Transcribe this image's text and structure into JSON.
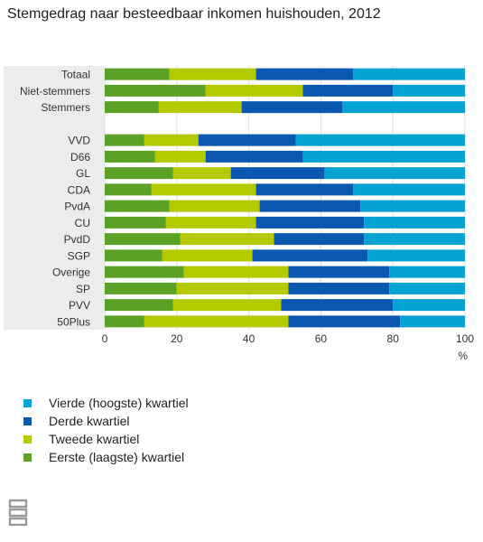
{
  "colors": {
    "q1": "#5aa125",
    "q2": "#b5c900",
    "q3": "#0b58b1",
    "q4": "#05a3d1",
    "label_band": "#ececec",
    "grid": "#e0e0e0",
    "logo": "#9b9b9b"
  },
  "chart_data": {
    "type": "bar",
    "orientation": "horizontal",
    "stacked": true,
    "title": "Stemgedrag naar besteedbaar inkomen huishouden, 2012",
    "xlabel": "%",
    "xlim": [
      0,
      100
    ],
    "xticks": [
      0,
      20,
      40,
      60,
      80,
      100
    ],
    "legend_position": "bottom-left",
    "categories": [
      "Totaal",
      "Niet-stemmers",
      "Stemmers",
      "",
      "VVD",
      "D66",
      "GL",
      "CDA",
      "PvdA",
      "CU",
      "PvdD",
      "SGP",
      "Overige",
      "SP",
      "PVV",
      "50Plus"
    ],
    "series": [
      {
        "name": "Eerste (laagste) kwartiel",
        "color_key": "q1",
        "values": [
          18,
          28,
          15,
          null,
          11,
          14,
          19,
          13,
          18,
          17,
          21,
          16,
          22,
          20,
          19,
          11
        ]
      },
      {
        "name": "Tweede kwartiel",
        "color_key": "q2",
        "values": [
          24,
          27,
          23,
          null,
          15,
          14,
          16,
          29,
          25,
          25,
          26,
          25,
          29,
          31,
          30,
          40
        ]
      },
      {
        "name": "Derde kwartiel",
        "color_key": "q3",
        "values": [
          27,
          25,
          28,
          null,
          27,
          27,
          26,
          27,
          28,
          30,
          25,
          32,
          28,
          28,
          31,
          31
        ]
      },
      {
        "name": "Vierde (hoogste) kwartiel",
        "color_key": "q4",
        "values": [
          31,
          20,
          34,
          null,
          47,
          45,
          39,
          31,
          29,
          28,
          28,
          27,
          21,
          21,
          20,
          18
        ]
      }
    ]
  },
  "legend": {
    "items": [
      {
        "label": "Vierde (hoogste) kwartiel",
        "color_key": "q4"
      },
      {
        "label": "Derde kwartiel",
        "color_key": "q3"
      },
      {
        "label": "Tweede kwartiel",
        "color_key": "q2"
      },
      {
        "label": "Eerste (laagste) kwartiel",
        "color_key": "q1"
      }
    ]
  },
  "logo": {
    "icon": "cbs-logo-icon"
  }
}
